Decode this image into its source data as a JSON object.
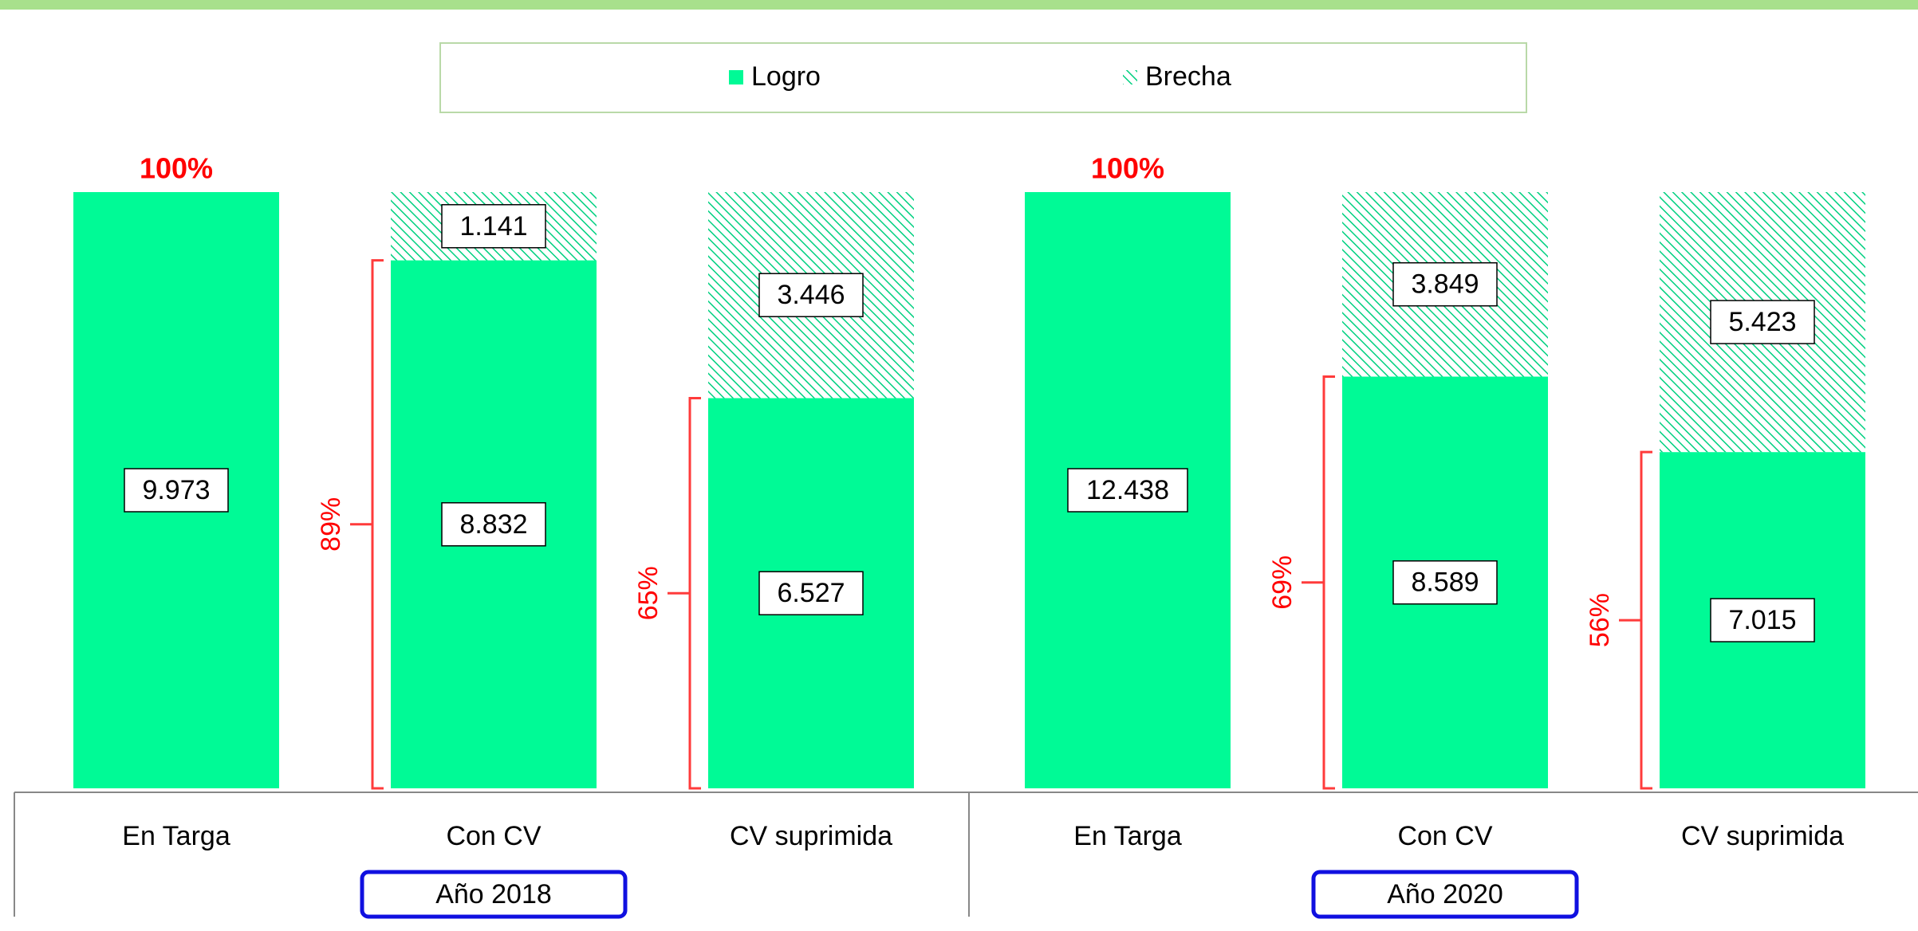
{
  "chart_data": [
    {
      "type": "stacked-bar",
      "group_label": "Año 2018",
      "categories": [
        "En Targa",
        "Con CV",
        "CV suprimida"
      ],
      "series": [
        {
          "name": "Logro",
          "color": "#00fa96",
          "values": [
            9973,
            8832,
            6527
          ],
          "value_labels": [
            "9.973",
            "8.832",
            "6.527"
          ]
        },
        {
          "name": "Brecha",
          "color": "#00d080",
          "pattern": "hatch",
          "values": [
            null,
            1141,
            3446
          ],
          "value_labels": [
            null,
            "1.141",
            "3.446"
          ]
        }
      ],
      "share_labels": [
        "100%",
        "89%",
        "65%"
      ],
      "ylim": [
        0,
        9973
      ]
    },
    {
      "type": "stacked-bar",
      "group_label": "Año 2020",
      "categories": [
        "En Targa",
        "Con CV",
        "CV suprimida"
      ],
      "series": [
        {
          "name": "Logro",
          "color": "#00fa96",
          "values": [
            12438,
            8589,
            7015
          ],
          "value_labels": [
            "12.438",
            "8.589",
            "7.015"
          ]
        },
        {
          "name": "Brecha",
          "color": "#00d080",
          "pattern": "hatch",
          "values": [
            null,
            3849,
            5423
          ],
          "value_labels": [
            null,
            "3.849",
            "5.423"
          ]
        }
      ],
      "share_labels": [
        "100%",
        "69%",
        "56%"
      ],
      "ylim": [
        0,
        12438
      ]
    }
  ]
}
